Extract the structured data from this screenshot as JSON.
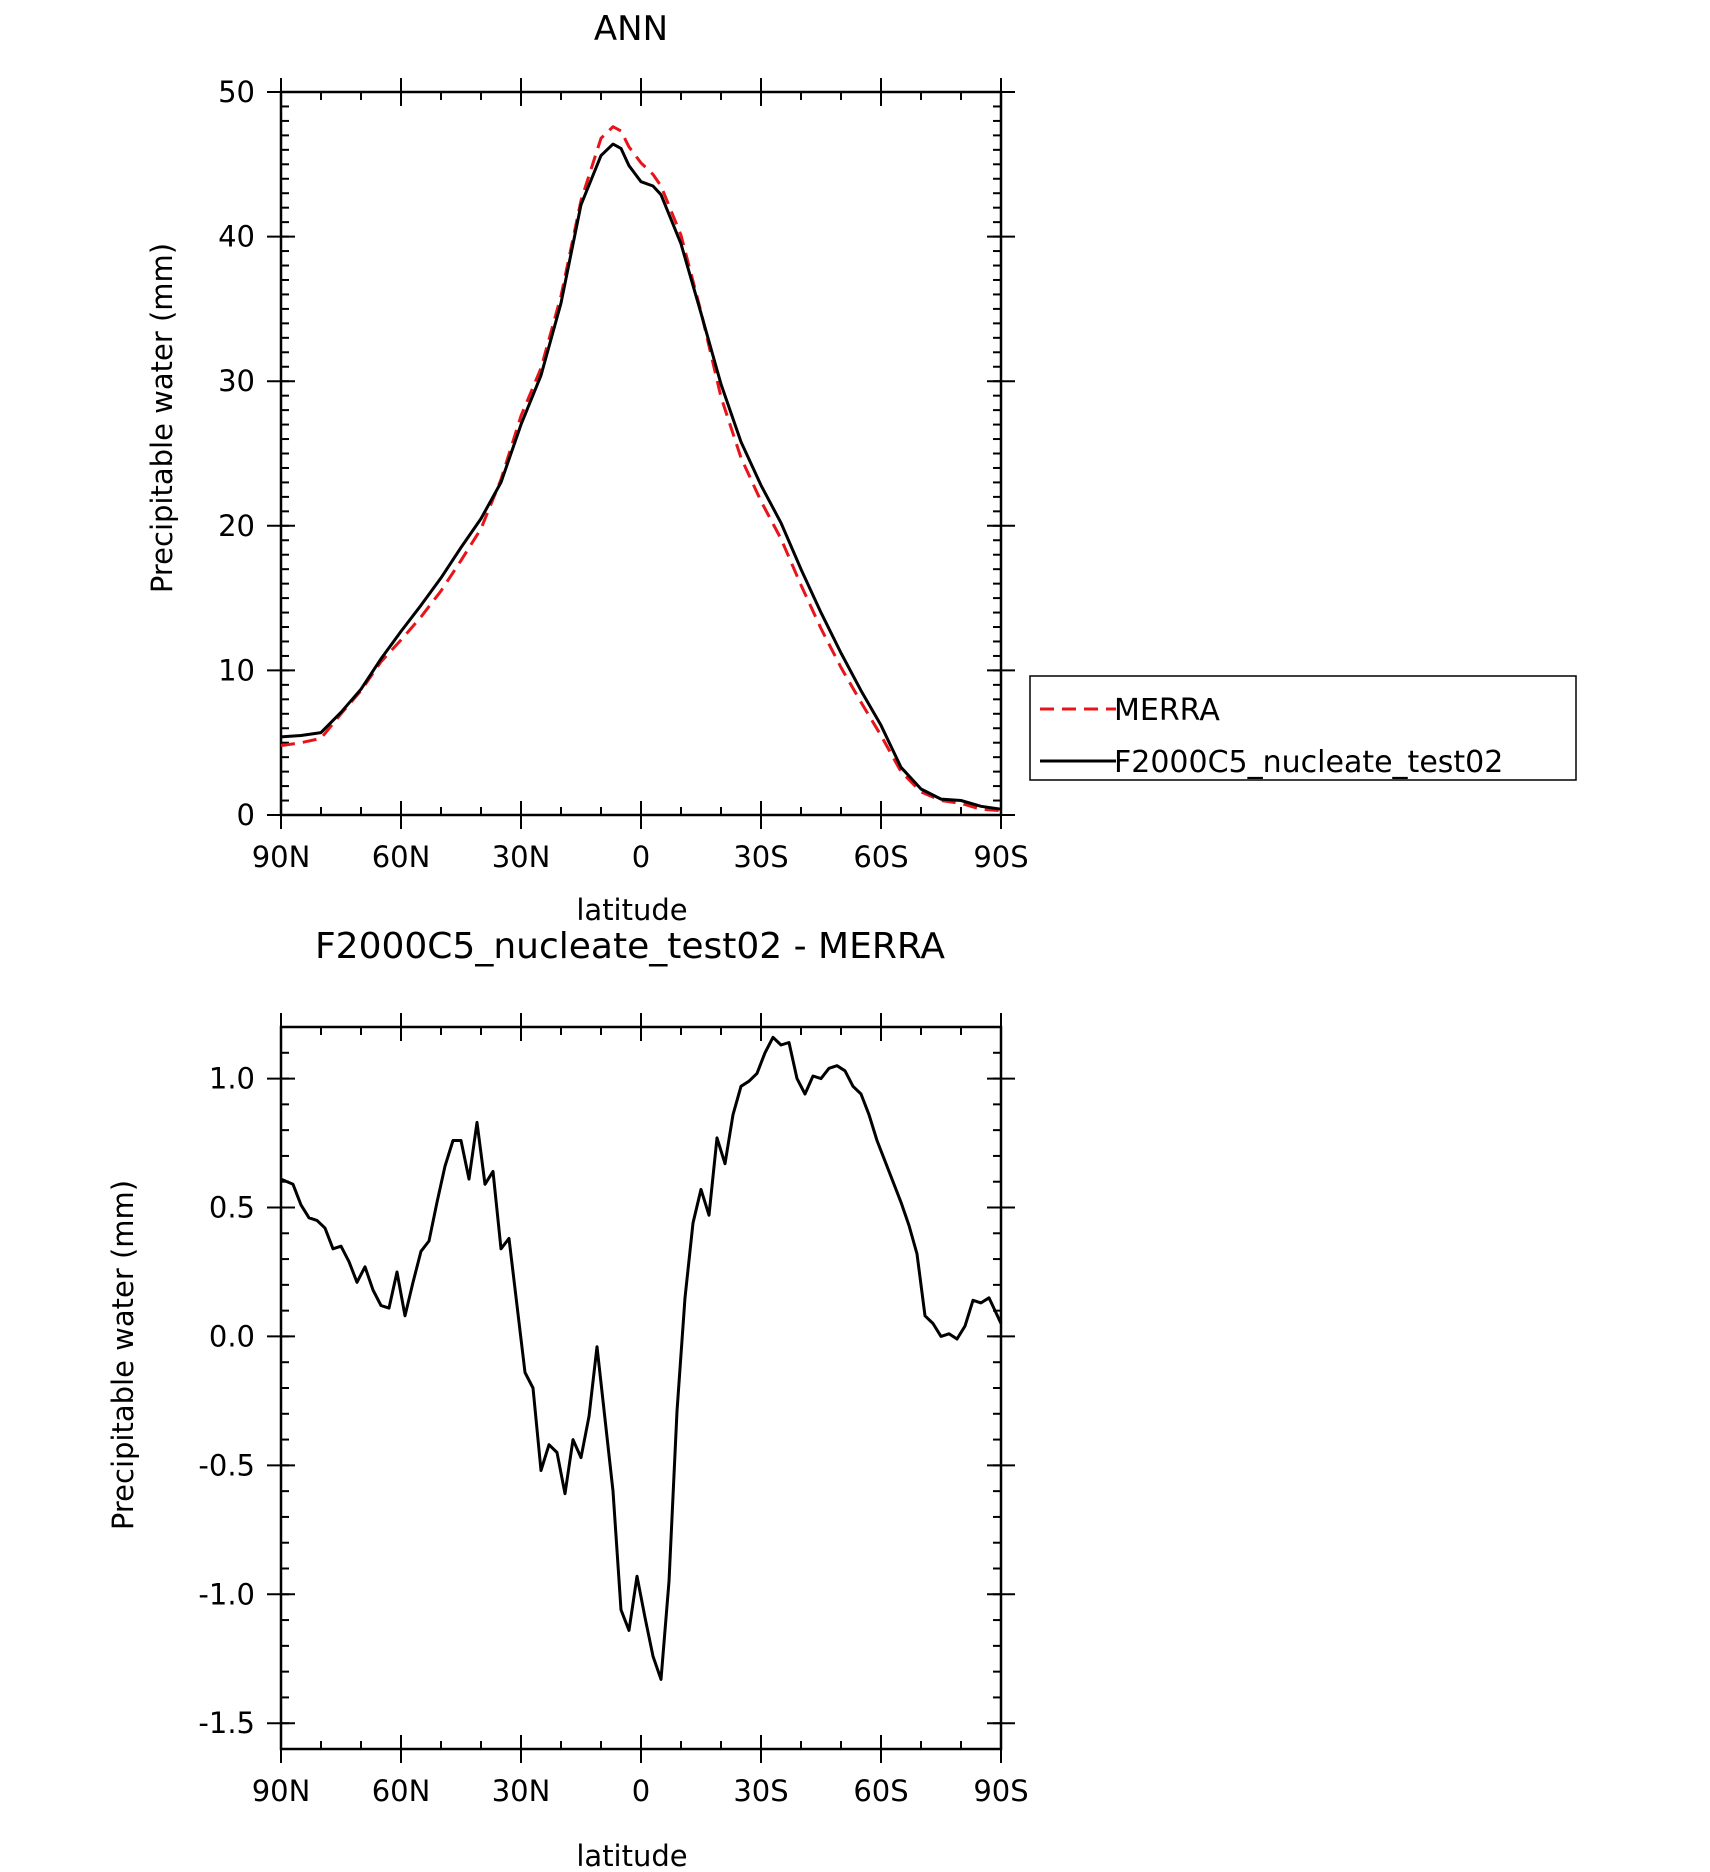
{
  "chart_data": [
    {
      "type": "line",
      "title": "ANN",
      "xlabel": "latitude",
      "ylabel": "Precipitable water (mm)",
      "xlim": [
        90,
        -90
      ],
      "ylim": [
        0,
        50
      ],
      "xticks": [
        90,
        60,
        30,
        0,
        -30,
        -60,
        -90
      ],
      "xtick_labels": [
        "90N",
        "60N",
        "30N",
        "0",
        "30S",
        "60S",
        "90S"
      ],
      "yticks": [
        0,
        10,
        20,
        30,
        40,
        50
      ],
      "ytick_labels": [
        "0",
        "10",
        "20",
        "30",
        "40",
        "50"
      ],
      "legend": {
        "position": "right"
      },
      "series": [
        {
          "name": "MERRA",
          "color": "#e8141a",
          "dash": "dashed",
          "x": [
            90,
            85,
            80,
            75,
            70,
            65,
            60,
            55,
            50,
            45,
            40,
            35,
            30,
            25,
            20,
            15,
            10,
            7,
            5,
            3,
            0,
            -3,
            -5,
            -10,
            -15,
            -20,
            -25,
            -30,
            -35,
            -40,
            -45,
            -50,
            -55,
            -60,
            -65,
            -70,
            -75,
            -80,
            -85,
            -90
          ],
          "y": [
            4.8,
            5.0,
            5.3,
            7.0,
            8.6,
            10.6,
            12.1,
            13.7,
            15.5,
            17.6,
            19.8,
            23.2,
            27.6,
            30.9,
            35.9,
            42.5,
            46.8,
            47.6,
            47.3,
            46.2,
            45.1,
            44.3,
            43.5,
            40.1,
            34.8,
            28.9,
            24.7,
            21.7,
            19.1,
            15.9,
            12.9,
            10.2,
            7.8,
            5.5,
            3.0,
            1.6,
            1.0,
            0.8,
            0.4,
            0.3
          ]
        },
        {
          "name": "F2000C5_nucleate_test02",
          "color": "#000000",
          "dash": "solid",
          "x": [
            90,
            85,
            80,
            75,
            70,
            65,
            60,
            55,
            50,
            45,
            40,
            35,
            30,
            25,
            20,
            15,
            10,
            7,
            5,
            3,
            0,
            -3,
            -5,
            -10,
            -15,
            -20,
            -25,
            -30,
            -35,
            -40,
            -45,
            -50,
            -55,
            -60,
            -65,
            -70,
            -75,
            -80,
            -85,
            -90
          ],
          "y": [
            5.4,
            5.5,
            5.7,
            7.1,
            8.7,
            10.8,
            12.7,
            14.5,
            16.4,
            18.5,
            20.5,
            23.0,
            27.0,
            30.4,
            35.4,
            42.2,
            45.6,
            46.4,
            46.1,
            44.9,
            43.8,
            43.5,
            42.9,
            39.5,
            34.7,
            29.8,
            25.8,
            22.8,
            20.2,
            17.0,
            14.0,
            11.2,
            8.6,
            6.2,
            3.3,
            1.8,
            1.1,
            1.0,
            0.6,
            0.4
          ]
        }
      ]
    },
    {
      "type": "line",
      "title": "F2000C5_nucleate_test02 - MERRA",
      "xlabel": "latitude",
      "ylabel": "Precipitable water (mm)",
      "xlim": [
        90,
        -90
      ],
      "ylim": [
        -1.6,
        1.2
      ],
      "xticks": [
        90,
        60,
        30,
        0,
        -30,
        -60,
        -90
      ],
      "xtick_labels": [
        "90N",
        "60N",
        "30N",
        "0",
        "30S",
        "60S",
        "90S"
      ],
      "yticks": [
        -1.5,
        -1.0,
        -0.5,
        0.0,
        0.5,
        1.0
      ],
      "ytick_labels": [
        "-1.5",
        "-1.0",
        "-0.5",
        "0.0",
        "0.5",
        "1.0"
      ],
      "series": [
        {
          "color": "#000000",
          "dash": "solid",
          "x": [
            90,
            87,
            85,
            83,
            81,
            79,
            77,
            75,
            73,
            71,
            69,
            67,
            65,
            63,
            61,
            59,
            57,
            55,
            53,
            51,
            49,
            47,
            45,
            43,
            41,
            39,
            37,
            35,
            33,
            31,
            29,
            27,
            25,
            23,
            21,
            19,
            17,
            15,
            13,
            11,
            9,
            7,
            5,
            3,
            1,
            -1,
            -3,
            -5,
            -7,
            -9,
            -11,
            -13,
            -15,
            -17,
            -19,
            -21,
            -23,
            -25,
            -27,
            -29,
            -31,
            -33,
            -35,
            -37,
            -39,
            -41,
            -43,
            -45,
            -47,
            -49,
            -51,
            -53,
            -55,
            -57,
            -59,
            -61,
            -63,
            -65,
            -67,
            -69,
            -71,
            -73,
            -75,
            -77,
            -79,
            -81,
            -83,
            -85,
            -87,
            -90
          ],
          "y": [
            0.61,
            0.59,
            0.51,
            0.46,
            0.45,
            0.42,
            0.34,
            0.35,
            0.29,
            0.21,
            0.27,
            0.18,
            0.12,
            0.11,
            0.25,
            0.08,
            0.21,
            0.33,
            0.37,
            0.52,
            0.66,
            0.76,
            0.76,
            0.61,
            0.83,
            0.59,
            0.64,
            0.34,
            0.38,
            0.12,
            -0.14,
            -0.2,
            -0.52,
            -0.42,
            -0.45,
            -0.61,
            -0.4,
            -0.47,
            -0.31,
            -0.04,
            -0.32,
            -0.6,
            -1.06,
            -1.14,
            -0.93,
            -1.09,
            -1.24,
            -1.33,
            -0.95,
            -0.29,
            0.15,
            0.44,
            0.57,
            0.47,
            0.77,
            0.67,
            0.86,
            0.97,
            0.99,
            1.02,
            1.1,
            1.16,
            1.13,
            1.14,
            1.0,
            0.94,
            1.01,
            1.0,
            1.04,
            1.05,
            1.03,
            0.97,
            0.94,
            0.86,
            0.76,
            0.68,
            0.6,
            0.52,
            0.43,
            0.32,
            0.08,
            0.05,
            0.0,
            0.01,
            -0.01,
            0.04,
            0.14,
            0.13,
            0.15,
            0.05
          ]
        }
      ]
    }
  ]
}
